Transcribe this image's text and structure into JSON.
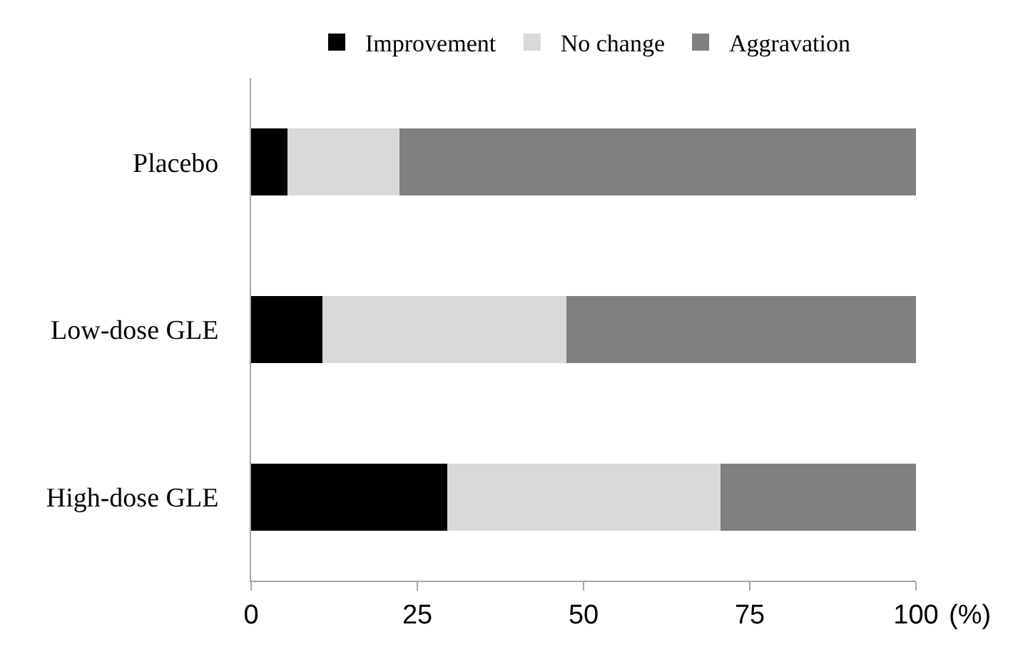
{
  "chart_data": {
    "type": "bar",
    "orientation": "horizontal",
    "stacked": true,
    "categories": [
      "Placebo",
      "Low-dose GLE",
      "High-dose GLE"
    ],
    "series": [
      {
        "name": "Improvement",
        "color": "#000000",
        "values": [
          5.5,
          10.7,
          29.5
        ]
      },
      {
        "name": "No change",
        "color": "#d9d9d9",
        "values": [
          16.8,
          36.7,
          41.1
        ]
      },
      {
        "name": "Aggravation",
        "color": "#808080",
        "values": [
          77.7,
          52.6,
          29.4
        ]
      }
    ],
    "xlabel": "(%)",
    "xlim": [
      0,
      100
    ],
    "xticks": [
      0,
      25,
      50,
      75,
      100
    ],
    "grid": false,
    "legend": "top"
  }
}
